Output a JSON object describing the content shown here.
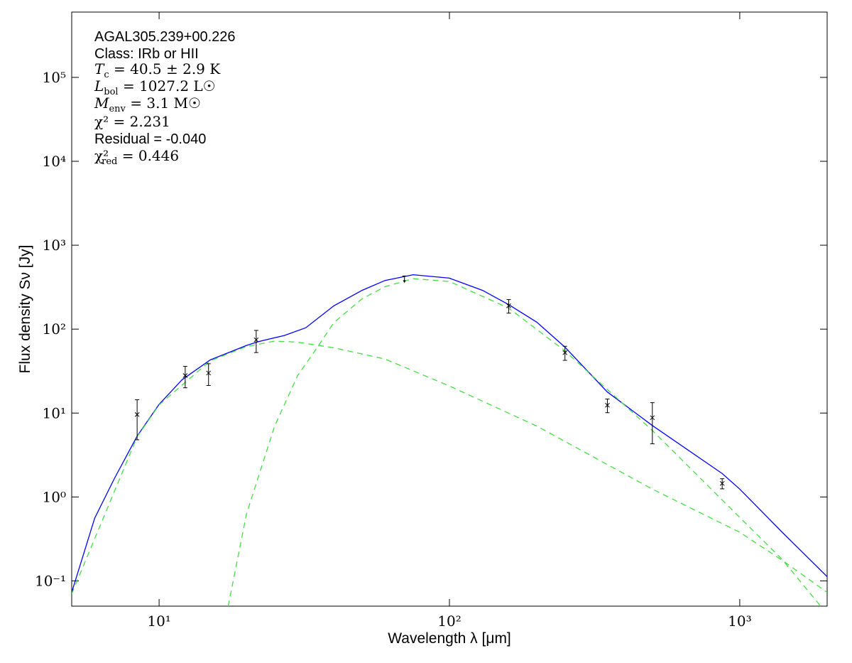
{
  "chart_data": {
    "type": "line",
    "x_label": "Wavelength λ [μm]",
    "y_label": "Flux density Sν [Jy]",
    "log_x": true,
    "log_y": true,
    "xlim": [
      5,
      2000
    ],
    "ylim": [
      0.05,
      600000
    ],
    "xticks": [
      {
        "value": 10,
        "label": "10¹"
      },
      {
        "value": 100,
        "label": "10²"
      },
      {
        "value": 1000,
        "label": "10³"
      }
    ],
    "yticks": [
      {
        "value": 0.1,
        "label": "10⁻¹"
      },
      {
        "value": 1,
        "label": "10⁰"
      },
      {
        "value": 10,
        "label": "10¹"
      },
      {
        "value": 100,
        "label": "10²"
      },
      {
        "value": 1000,
        "label": "10³"
      },
      {
        "value": 10000,
        "label": "10⁴"
      },
      {
        "value": 100000,
        "label": "10⁵"
      }
    ],
    "annotations": {
      "source": "AGAL305.239+00.226",
      "class": "Class: IRb or HII",
      "temperature": {
        "symbol": "T",
        "sub": "c",
        "text": " = 40.5 ± 2.9 K"
      },
      "luminosity": {
        "symbol": "L",
        "sub": "bol",
        "text": " = 1027.2 L☉"
      },
      "mass": {
        "symbol": "M",
        "sub": "env",
        "text": " = 3.1 M☉"
      },
      "chi2": "χ² = 2.231",
      "residual": "Residual = -0.040",
      "chi2_red": {
        "symbol": "χ²",
        "sub": "red",
        "text": " = 0.446"
      }
    },
    "series": [
      {
        "style": "line",
        "color": "#0000ff",
        "dashed": false,
        "x": [
          5,
          6,
          7,
          8.4,
          10,
          12,
          15,
          20,
          22,
          27,
          32,
          40,
          50,
          60,
          75,
          100,
          130,
          160,
          200,
          250,
          350,
          500,
          870,
          1000,
          1400,
          2000
        ],
        "values": [
          0.073,
          0.56,
          1.64,
          5.3,
          12.7,
          25,
          43,
          64,
          71,
          84,
          104,
          190,
          290,
          380,
          445,
          405,
          290,
          196,
          121,
          61,
          17.8,
          7.1,
          1.9,
          1.24,
          0.38,
          0.112
        ]
      },
      {
        "style": "line",
        "color": "#44dd44",
        "dashed": true,
        "x": [
          5,
          8.4,
          10,
          15,
          20,
          25,
          30,
          40,
          60,
          100,
          200,
          500,
          1000,
          1400,
          2000
        ],
        "values": [
          0.07,
          5.2,
          12.5,
          42,
          62,
          72,
          70,
          60,
          44,
          21,
          7,
          1.24,
          0.38,
          0.176,
          0.073
        ]
      },
      {
        "style": "line",
        "color": "#44dd44",
        "dashed": true,
        "x": [
          17.3,
          20,
          25,
          30,
          35,
          40,
          50,
          60,
          75,
          100,
          160,
          250,
          500,
          1000,
          1400,
          1900
        ],
        "values": [
          0.05,
          0.63,
          7,
          28,
          60,
          120,
          230,
          320,
          400,
          370,
          178,
          55,
          6.2,
          0.57,
          0.18,
          0.05
        ]
      },
      {
        "style": "errorbar",
        "color": "#000000",
        "x": [
          8.4,
          12.3,
          14.8,
          21.6,
          70,
          160,
          250,
          350,
          500,
          870
        ],
        "values": [
          9.6,
          28,
          30,
          74.6,
          430,
          190,
          52.5,
          12.4,
          8.8,
          1.45
        ],
        "errors": [
          4.8,
          8,
          8.7,
          22,
          null,
          35,
          10,
          2.3,
          4.5,
          0.2
        ],
        "upper_limit": [
          false,
          false,
          false,
          false,
          true,
          false,
          false,
          false,
          false,
          false
        ]
      }
    ]
  }
}
